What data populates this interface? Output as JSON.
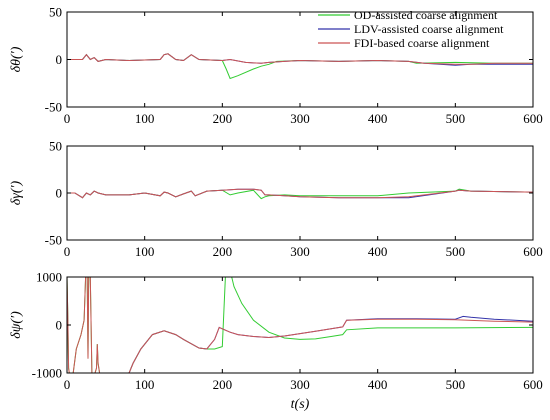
{
  "chart_data": [
    {
      "type": "line",
      "ylabel": "δθ(′)",
      "ylim": [
        -50,
        50
      ],
      "yticks": [
        -50,
        0,
        50
      ],
      "xlim": [
        0,
        600
      ],
      "xticks": [
        0,
        100,
        200,
        300,
        400,
        500,
        600
      ],
      "legend": {
        "placement": "top-right"
      },
      "series": [
        {
          "name": "OD-assisted coarse alignment",
          "color": "#33cc33",
          "x": [
            0,
            5,
            20,
            25,
            30,
            35,
            40,
            50,
            80,
            120,
            125,
            130,
            140,
            150,
            160,
            170,
            200,
            205,
            210,
            220,
            240,
            250,
            260,
            270,
            300,
            350,
            400,
            440,
            450,
            500,
            550,
            600
          ],
          "y": [
            0,
            0,
            0,
            5,
            0,
            2,
            -2,
            0,
            -1,
            0,
            5,
            6,
            0,
            -1,
            5,
            0,
            -1,
            -10,
            -20,
            -17,
            -10,
            -7,
            -5,
            -2,
            -1,
            -2,
            -1,
            -2,
            -4,
            -3,
            -4,
            -4
          ]
        },
        {
          "name": "LDV-assisted coarse alignment",
          "color": "#3333aa",
          "x": [
            0,
            5,
            20,
            25,
            30,
            35,
            40,
            50,
            80,
            120,
            125,
            130,
            140,
            150,
            160,
            170,
            200,
            210,
            230,
            250,
            260,
            280,
            300,
            350,
            400,
            440,
            460,
            500,
            520,
            550,
            600
          ],
          "y": [
            0,
            0,
            0,
            5,
            0,
            2,
            -2,
            0,
            -1,
            0,
            5,
            6,
            0,
            -1,
            5,
            0,
            -1,
            0,
            -3,
            -4,
            -3,
            -2,
            -1,
            -2,
            -1,
            -2,
            -4,
            -6,
            -5,
            -5,
            -5
          ]
        },
        {
          "name": "FDI-based coarse alignment",
          "color": "#cc5555",
          "x": [
            0,
            5,
            20,
            25,
            30,
            35,
            40,
            50,
            80,
            120,
            125,
            130,
            140,
            150,
            160,
            170,
            200,
            210,
            230,
            250,
            260,
            280,
            300,
            350,
            400,
            440,
            460,
            500,
            520,
            550,
            600
          ],
          "y": [
            0,
            0,
            0,
            5,
            0,
            2,
            -2,
            0,
            -1,
            0,
            5,
            6,
            0,
            -1,
            5,
            0,
            -1,
            0,
            -3,
            -4,
            -3,
            -2,
            -1,
            -2,
            -1,
            -2,
            -4,
            -5,
            -5,
            -4,
            -4
          ]
        }
      ]
    },
    {
      "type": "line",
      "ylabel": "δγ(′)",
      "ylim": [
        -50,
        50
      ],
      "yticks": [
        -50,
        0,
        50
      ],
      "xlim": [
        0,
        600
      ],
      "xticks": [
        0,
        100,
        200,
        300,
        400,
        500,
        600
      ],
      "series": [
        {
          "name": "OD-assisted coarse alignment",
          "color": "#33cc33",
          "x": [
            0,
            10,
            20,
            25,
            30,
            35,
            40,
            50,
            80,
            100,
            120,
            125,
            130,
            140,
            150,
            160,
            165,
            180,
            200,
            210,
            220,
            240,
            250,
            255,
            260,
            280,
            300,
            350,
            400,
            440,
            500,
            505,
            520,
            600
          ],
          "y": [
            0,
            0,
            -5,
            0,
            -2,
            2,
            0,
            -2,
            -2,
            0,
            -3,
            1,
            0,
            -4,
            -1,
            2,
            -3,
            2,
            3,
            -2,
            0,
            3,
            -6,
            -4,
            -3,
            -2,
            -3,
            -3,
            -3,
            0,
            2,
            4,
            2,
            1
          ]
        },
        {
          "name": "LDV-assisted coarse alignment",
          "color": "#3333aa",
          "x": [
            0,
            10,
            20,
            25,
            30,
            35,
            40,
            50,
            80,
            100,
            120,
            125,
            130,
            140,
            150,
            160,
            165,
            180,
            200,
            220,
            240,
            250,
            255,
            260,
            280,
            300,
            350,
            400,
            440,
            500,
            505,
            520,
            600
          ],
          "y": [
            0,
            0,
            -5,
            0,
            -2,
            2,
            0,
            -2,
            -2,
            0,
            -3,
            1,
            0,
            -4,
            -1,
            2,
            -3,
            2,
            3,
            4,
            4,
            3,
            -2,
            -2,
            -3,
            -4,
            -5,
            -5,
            -5,
            2,
            3,
            2,
            1
          ]
        },
        {
          "name": "FDI-based coarse alignment",
          "color": "#cc5555",
          "x": [
            0,
            10,
            20,
            25,
            30,
            35,
            40,
            50,
            80,
            100,
            120,
            125,
            130,
            140,
            150,
            160,
            165,
            180,
            200,
            220,
            240,
            250,
            255,
            260,
            280,
            300,
            350,
            400,
            440,
            500,
            505,
            520,
            600
          ],
          "y": [
            0,
            0,
            -5,
            0,
            -2,
            2,
            0,
            -2,
            -2,
            0,
            -3,
            1,
            0,
            -4,
            -1,
            2,
            -3,
            2,
            3,
            4,
            4,
            3,
            -2,
            -2,
            -3,
            -4,
            -5,
            -5,
            -4,
            2,
            3,
            2,
            1
          ]
        }
      ]
    },
    {
      "type": "line",
      "ylabel": "δψ(′)",
      "xlabel": "t(s)",
      "ylim": [
        -1000,
        1000
      ],
      "yticks": [
        -1000,
        0,
        1000
      ],
      "xlim": [
        0,
        600
      ],
      "xticks": [
        0,
        100,
        200,
        300,
        400,
        500,
        600
      ],
      "series": [
        {
          "name": "OD-assisted coarse alignment",
          "color": "#33cc33",
          "x": [
            0,
            1,
            2,
            3,
            5,
            8,
            12,
            18,
            22,
            24,
            26,
            27,
            28,
            30,
            32,
            36,
            38,
            39,
            40,
            42,
            44,
            46,
            80,
            85,
            95,
            110,
            125,
            140,
            150,
            170,
            180,
            190,
            200,
            204,
            207,
            210,
            212,
            215,
            225,
            240,
            260,
            280,
            300,
            320,
            340,
            355,
            360,
            400,
            500,
            600
          ],
          "y": [
            1000,
            200,
            -900,
            -1000,
            -1000,
            -1000,
            -500,
            -200,
            100,
            1000,
            1000,
            -700,
            1000,
            1000,
            -1000,
            -1000,
            -900,
            -400,
            -800,
            -1000,
            -1000,
            -1000,
            -1000,
            -800,
            -500,
            -200,
            -120,
            -200,
            -300,
            -480,
            -500,
            -500,
            -450,
            1000,
            1000,
            1000,
            1000,
            800,
            450,
            100,
            -150,
            -270,
            -300,
            -290,
            -240,
            -200,
            -100,
            -60,
            -60,
            -50
          ]
        },
        {
          "name": "LDV-assisted coarse alignment",
          "color": "#3333aa",
          "x": [
            80,
            85,
            95,
            110,
            125,
            140,
            150,
            170,
            180,
            190,
            196,
            200,
            210,
            220,
            240,
            260,
            280,
            300,
            320,
            340,
            355,
            360,
            400,
            450,
            500,
            510,
            520,
            550,
            600
          ],
          "y": [
            -1000,
            -800,
            -500,
            -200,
            -120,
            -200,
            -300,
            -480,
            -500,
            -300,
            -50,
            -80,
            -150,
            -200,
            -240,
            -260,
            -230,
            -180,
            -130,
            -80,
            -40,
            100,
            130,
            130,
            120,
            180,
            160,
            120,
            80
          ]
        },
        {
          "name": "FDI-based coarse alignment",
          "color": "#cc5555",
          "x": [
            0,
            1,
            2,
            3,
            5,
            8,
            12,
            18,
            22,
            24,
            26,
            27,
            28,
            30,
            32,
            36,
            38,
            39,
            40,
            42,
            44,
            46,
            80,
            85,
            95,
            110,
            125,
            140,
            150,
            170,
            180,
            190,
            196,
            200,
            210,
            220,
            240,
            260,
            280,
            300,
            320,
            340,
            355,
            360,
            400,
            450,
            500,
            550,
            600
          ],
          "y": [
            1000,
            200,
            -900,
            -1000,
            -1000,
            -1000,
            -500,
            -200,
            100,
            1000,
            1000,
            -700,
            1000,
            1000,
            -1000,
            -1000,
            -900,
            -400,
            -800,
            -1000,
            -1000,
            -1000,
            -1000,
            -800,
            -500,
            -200,
            -120,
            -200,
            -300,
            -480,
            -500,
            -300,
            -50,
            -80,
            -150,
            -200,
            -240,
            -260,
            -230,
            -180,
            -130,
            -80,
            -40,
            100,
            120,
            120,
            110,
            80,
            60
          ]
        }
      ]
    }
  ]
}
